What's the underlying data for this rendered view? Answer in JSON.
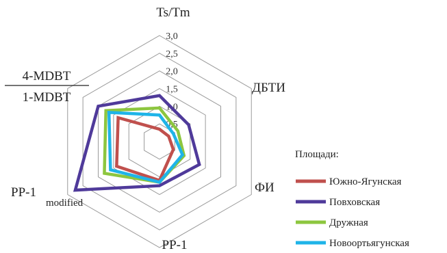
{
  "chart_data": {
    "type": "radar",
    "axes": [
      {
        "id": "ts_tm",
        "label": "Ts/Tm"
      },
      {
        "id": "dbti",
        "label": "ДБТИ"
      },
      {
        "id": "fi",
        "label": "ФИ"
      },
      {
        "id": "pp1",
        "label": "PP-1"
      },
      {
        "id": "pp1mod",
        "label_main": "PP-1",
        "label_sub": "modified"
      },
      {
        "id": "mdbt",
        "label_num": "4-MDBT",
        "label_den": "1-MDBT"
      }
    ],
    "ticks": [
      "0,5",
      "1,0",
      "1,5",
      "2,0",
      "2,5",
      "3,0"
    ],
    "rlim": [
      0,
      3.0
    ],
    "grid": true,
    "legend": {
      "title": "Площади:",
      "placement": "right"
    },
    "series": [
      {
        "name": "Южно-Ягунская",
        "color": "#c0504d",
        "values": [
          0.35,
          0.3,
          0.45,
          1.1,
          1.4,
          1.35
        ]
      },
      {
        "name": "Повховская",
        "color": "#4f3a9a",
        "values": [
          1.3,
          0.95,
          1.3,
          1.25,
          2.75,
          2.0
        ]
      },
      {
        "name": "Дружная",
        "color": "#8dc63f",
        "values": [
          0.95,
          0.6,
          0.8,
          1.15,
          1.8,
          1.75
        ]
      },
      {
        "name": "Новоортьягунская",
        "color": "#1fb4e8",
        "values": [
          0.75,
          0.45,
          0.75,
          1.15,
          1.6,
          1.65
        ]
      }
    ]
  }
}
